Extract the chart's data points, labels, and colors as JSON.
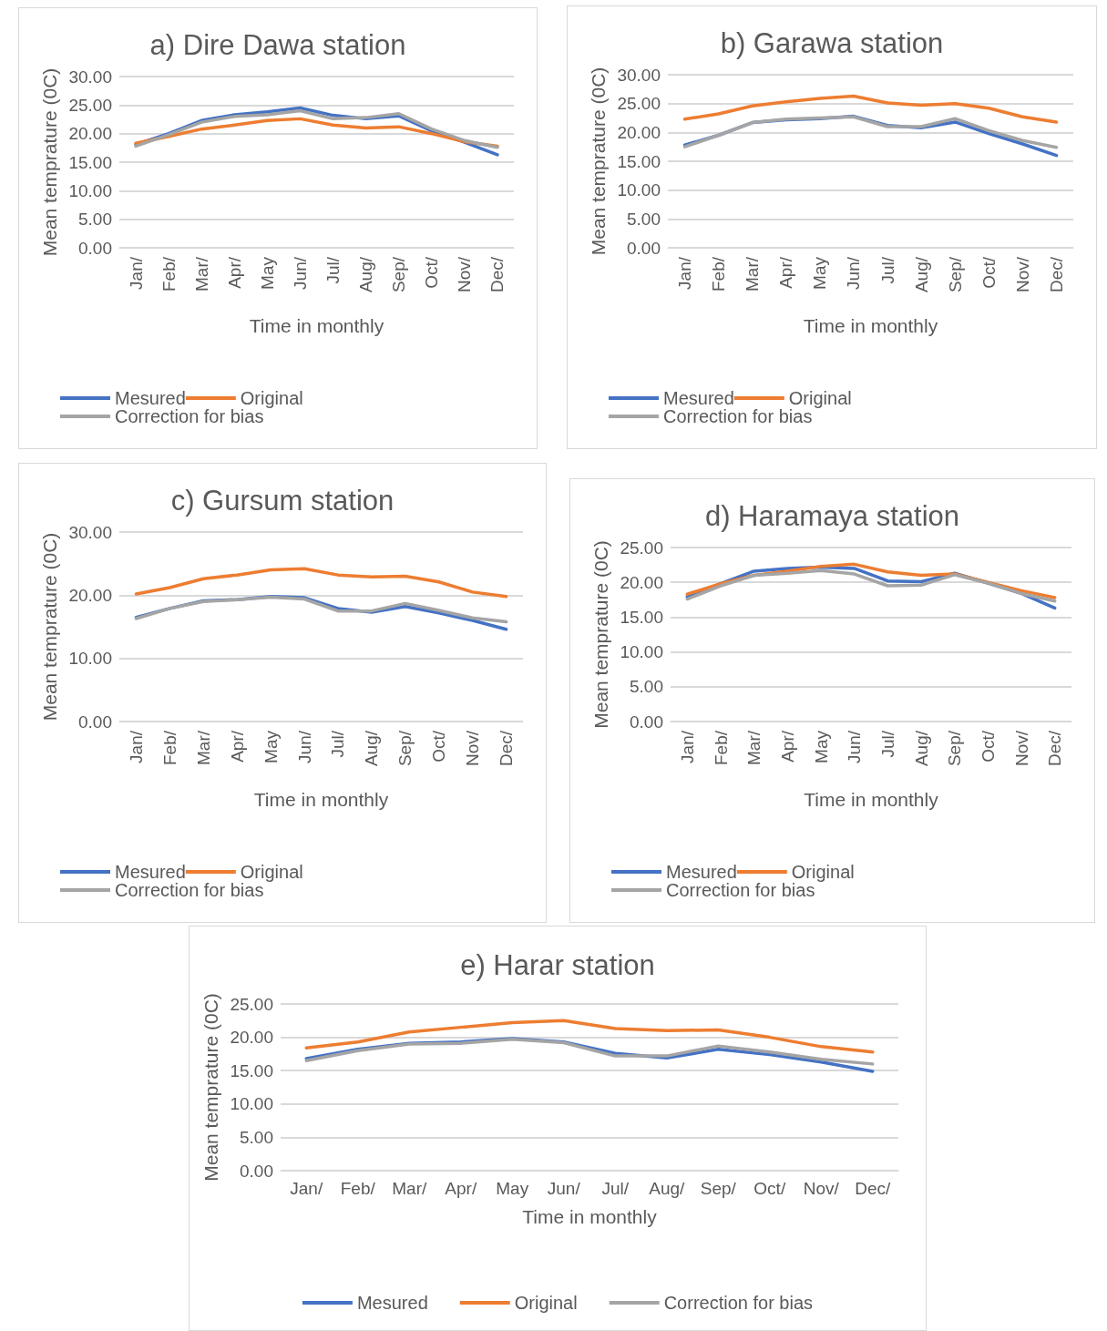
{
  "chart_data": [
    {
      "type": "line",
      "title": "a) Dire Dawa station",
      "xlabel": "Time in monthly",
      "ylabel": "Mean temprature (0C)",
      "categories": [
        "Jan/",
        "Feb/",
        "Mar/",
        "Apr/",
        "May",
        "Jun/",
        "Jul/",
        "Aug/",
        "Sep/",
        "Oct/",
        "Nov/",
        "Dec/"
      ],
      "ylim": [
        0,
        30
      ],
      "yticks": [
        {
          "value": 0,
          "label": "0.00"
        },
        {
          "value": 5,
          "label": "5.00"
        },
        {
          "value": 10,
          "label": "10.00"
        },
        {
          "value": 15,
          "label": "15.00"
        },
        {
          "value": 20,
          "label": "20.00"
        },
        {
          "value": 25,
          "label": "25.00"
        },
        {
          "value": 30,
          "label": "30.00"
        }
      ],
      "grid": "y",
      "legend": "bottom",
      "marker": "none",
      "line_style": "solid",
      "series": [
        {
          "name": "Mesured",
          "color": "#4472c4",
          "values": [
            18.1,
            20.0,
            22.3,
            23.3,
            23.8,
            24.5,
            23.2,
            22.6,
            23.1,
            20.5,
            18.5,
            16.3
          ]
        },
        {
          "name": "Original",
          "color": "#ed7d31",
          "values": [
            18.3,
            19.5,
            20.8,
            21.5,
            22.3,
            22.6,
            21.5,
            21.0,
            21.2,
            20.0,
            18.6,
            17.8
          ]
        },
        {
          "name": "Correction for bias",
          "color": "#a5a5a5",
          "values": [
            17.8,
            19.8,
            22.0,
            23.0,
            23.3,
            24.0,
            22.6,
            22.8,
            23.5,
            20.8,
            18.8,
            17.6
          ]
        }
      ]
    },
    {
      "type": "line",
      "title": "b) Garawa station",
      "xlabel": "Time in monthly",
      "ylabel": "Mean temprature (0C)",
      "categories": [
        "Jan/",
        "Feb/",
        "Mar/",
        "Apr/",
        "May",
        "Jun/",
        "Jul/",
        "Aug/",
        "Sep/",
        "Oct/",
        "Nov/",
        "Dec/"
      ],
      "ylim": [
        0,
        30
      ],
      "yticks": [
        {
          "value": 0,
          "label": "0.00"
        },
        {
          "value": 5,
          "label": "5.00"
        },
        {
          "value": 10,
          "label": "10.00"
        },
        {
          "value": 15,
          "label": "15.00"
        },
        {
          "value": 20,
          "label": "20.00"
        },
        {
          "value": 25,
          "label": "25.00"
        },
        {
          "value": 30,
          "label": "30.00"
        }
      ],
      "grid": "y",
      "legend": "bottom",
      "marker": "none",
      "line_style": "solid",
      "series": [
        {
          "name": "Mesured",
          "color": "#4472c4",
          "values": [
            17.8,
            19.5,
            21.7,
            22.2,
            22.4,
            22.8,
            21.2,
            20.8,
            21.8,
            19.8,
            18.0,
            16.0
          ]
        },
        {
          "name": "Original",
          "color": "#ed7d31",
          "values": [
            22.3,
            23.2,
            24.6,
            25.3,
            25.9,
            26.3,
            25.1,
            24.7,
            25.0,
            24.2,
            22.7,
            21.8
          ]
        },
        {
          "name": "Correction for bias",
          "color": "#a5a5a5",
          "values": [
            17.5,
            19.5,
            21.7,
            22.3,
            22.5,
            22.7,
            21.0,
            21.0,
            22.4,
            20.3,
            18.6,
            17.4
          ]
        }
      ]
    },
    {
      "type": "line",
      "title": "c) Gursum station",
      "xlabel": "Time in monthly",
      "ylabel": "Mean temprature (0C)",
      "categories": [
        "Jan/",
        "Feb/",
        "Mar/",
        "Apr/",
        "May",
        "Jun/",
        "Jul/",
        "Aug/",
        "Sep/",
        "Oct/",
        "Nov/",
        "Dec/"
      ],
      "ylim": [
        0,
        30
      ],
      "yticks": [
        {
          "value": 0,
          "label": "0.00"
        },
        {
          "value": 10,
          "label": "10.00"
        },
        {
          "value": 20,
          "label": "20.00"
        },
        {
          "value": 30,
          "label": "30.00"
        }
      ],
      "grid": "y",
      "legend": "bottom",
      "marker": "none",
      "line_style": "solid",
      "series": [
        {
          "name": "Mesured",
          "color": "#4472c4",
          "values": [
            16.5,
            17.9,
            19.1,
            19.3,
            19.8,
            19.6,
            17.9,
            17.3,
            18.2,
            17.2,
            16.0,
            14.6
          ]
        },
        {
          "name": "Original",
          "color": "#ed7d31",
          "values": [
            20.2,
            21.2,
            22.6,
            23.2,
            24.0,
            24.2,
            23.2,
            22.9,
            23.0,
            22.1,
            20.5,
            19.8
          ]
        },
        {
          "name": "Correction for bias",
          "color": "#a5a5a5",
          "values": [
            16.3,
            17.9,
            19.0,
            19.3,
            19.7,
            19.4,
            17.5,
            17.5,
            18.7,
            17.6,
            16.4,
            15.8
          ]
        }
      ]
    },
    {
      "type": "line",
      "title": "d) Haramaya station",
      "xlabel": "Time in monthly",
      "ylabel": "Mean temprature (0C)",
      "categories": [
        "Jan/",
        "Feb/",
        "Mar/",
        "Apr/",
        "May",
        "Jun/",
        "Jul/",
        "Aug/",
        "Sep/",
        "Oct/",
        "Nov/",
        "Dec/"
      ],
      "ylim": [
        0,
        25
      ],
      "yticks": [
        {
          "value": 0,
          "label": "0.00"
        },
        {
          "value": 5,
          "label": "5.00"
        },
        {
          "value": 10,
          "label": "10.00"
        },
        {
          "value": 15,
          "label": "15.00"
        },
        {
          "value": 20,
          "label": "20.00"
        },
        {
          "value": 25,
          "label": "25.00"
        }
      ],
      "grid": "y",
      "legend": "bottom",
      "marker": "none",
      "line_style": "solid",
      "series": [
        {
          "name": "Mesured",
          "color": "#4472c4",
          "values": [
            17.9,
            19.8,
            21.6,
            22.0,
            22.2,
            22.0,
            20.2,
            20.1,
            21.3,
            19.9,
            18.4,
            16.3
          ]
        },
        {
          "name": "Original",
          "color": "#ed7d31",
          "values": [
            18.3,
            19.8,
            21.0,
            21.6,
            22.3,
            22.6,
            21.5,
            21.0,
            21.2,
            20.0,
            18.8,
            17.8
          ]
        },
        {
          "name": "Correction for bias",
          "color": "#a5a5a5",
          "values": [
            17.6,
            19.5,
            21.0,
            21.3,
            21.7,
            21.2,
            19.5,
            19.6,
            21.1,
            19.9,
            18.4,
            17.3
          ]
        }
      ]
    },
    {
      "type": "line",
      "title": "e) Harar station",
      "xlabel": "Time in monthly",
      "ylabel": "Mean temprature (0C)",
      "categories": [
        "Jan/",
        "Feb/",
        "Mar/",
        "Apr/",
        "May",
        "Jun/",
        "Jul/",
        "Aug/",
        "Sep/",
        "Oct/",
        "Nov/",
        "Dec/"
      ],
      "ylim": [
        0,
        25
      ],
      "yticks": [
        {
          "value": 0,
          "label": "0.00"
        },
        {
          "value": 5,
          "label": "5.00"
        },
        {
          "value": 10,
          "label": "10.00"
        },
        {
          "value": 15,
          "label": "15.00"
        },
        {
          "value": 20,
          "label": "20.00"
        },
        {
          "value": 25,
          "label": "25.00"
        }
      ],
      "grid": "y",
      "legend": "bottom",
      "marker": "none",
      "line_style": "solid",
      "series": [
        {
          "name": "Mesured",
          "color": "#4472c4",
          "values": [
            16.8,
            18.2,
            19.1,
            19.3,
            19.8,
            19.3,
            17.6,
            16.9,
            18.2,
            17.4,
            16.3,
            14.9
          ]
        },
        {
          "name": "Original",
          "color": "#ed7d31",
          "values": [
            18.4,
            19.3,
            20.8,
            21.5,
            22.2,
            22.5,
            21.3,
            21.0,
            21.1,
            20.0,
            18.6,
            17.8
          ]
        },
        {
          "name": "Correction for bias",
          "color": "#a5a5a5",
          "values": [
            16.5,
            18.0,
            19.0,
            19.1,
            19.7,
            19.2,
            17.2,
            17.2,
            18.7,
            17.8,
            16.7,
            16.0
          ]
        }
      ]
    }
  ]
}
